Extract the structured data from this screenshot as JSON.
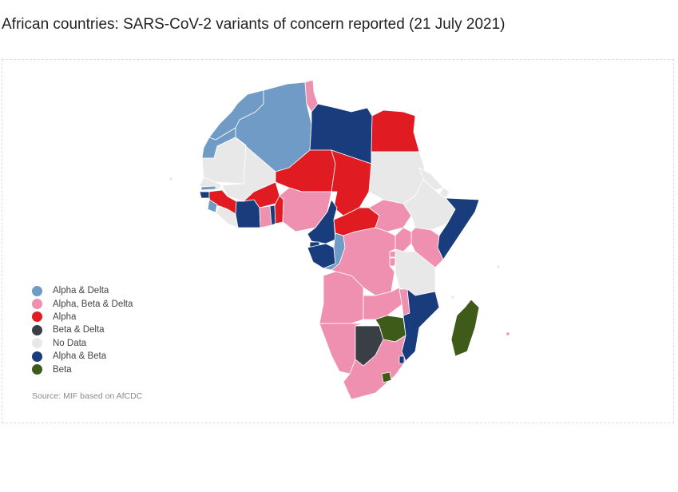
{
  "title": "African countries: SARS-CoV-2 variants of concern reported (21 July 2021)",
  "source": "Source: MIF based on AfCDC",
  "categories": [
    {
      "key": "alpha_delta",
      "label": "Alpha & Delta",
      "color": "#6f9bc6"
    },
    {
      "key": "alpha_beta_delta",
      "label": "Alpha, Beta & Delta",
      "color": "#ef90b0"
    },
    {
      "key": "alpha",
      "label": "Alpha",
      "color": "#e01b22"
    },
    {
      "key": "beta_delta",
      "label": "Beta & Delta",
      "color": "#3a3f45"
    },
    {
      "key": "no_data",
      "label": "No Data",
      "color": "#e8e8e8"
    },
    {
      "key": "alpha_beta",
      "label": "Alpha & Beta",
      "color": "#193c7c"
    },
    {
      "key": "beta",
      "label": "Beta",
      "color": "#3e5b1a"
    }
  ],
  "regions": [
    {
      "name": "Morocco",
      "category": "alpha_delta"
    },
    {
      "name": "Western Sahara",
      "category": "alpha_delta"
    },
    {
      "name": "Algeria",
      "category": "alpha_delta"
    },
    {
      "name": "Tunisia",
      "category": "alpha_beta_delta"
    },
    {
      "name": "Libya",
      "category": "alpha_beta"
    },
    {
      "name": "Egypt",
      "category": "alpha"
    },
    {
      "name": "Mauritania",
      "category": "no_data"
    },
    {
      "name": "Mali",
      "category": "no_data"
    },
    {
      "name": "Niger",
      "category": "alpha"
    },
    {
      "name": "Chad",
      "category": "alpha"
    },
    {
      "name": "Sudan",
      "category": "no_data"
    },
    {
      "name": "Senegal",
      "category": "no_data"
    },
    {
      "name": "Gambia",
      "category": "alpha_delta"
    },
    {
      "name": "Guinea-Bissau",
      "category": "alpha_beta"
    },
    {
      "name": "Guinea",
      "category": "alpha"
    },
    {
      "name": "Sierra Leone",
      "category": "alpha_delta"
    },
    {
      "name": "Liberia",
      "category": "no_data"
    },
    {
      "name": "Cote d'Ivoire",
      "category": "alpha_beta"
    },
    {
      "name": "Burkina Faso",
      "category": "alpha"
    },
    {
      "name": "Ghana",
      "category": "alpha_beta_delta"
    },
    {
      "name": "Togo",
      "category": "alpha_beta"
    },
    {
      "name": "Benin",
      "category": "alpha"
    },
    {
      "name": "Nigeria",
      "category": "alpha_beta_delta"
    },
    {
      "name": "Cameroon",
      "category": "alpha_beta"
    },
    {
      "name": "Central African Republic",
      "category": "alpha"
    },
    {
      "name": "South Sudan",
      "category": "alpha_beta_delta"
    },
    {
      "name": "Ethiopia",
      "category": "no_data"
    },
    {
      "name": "Eritrea",
      "category": "no_data"
    },
    {
      "name": "Djibouti",
      "category": "no_data"
    },
    {
      "name": "Somalia",
      "category": "alpha_beta"
    },
    {
      "name": "Kenya",
      "category": "alpha_beta_delta"
    },
    {
      "name": "Uganda",
      "category": "alpha_beta_delta"
    },
    {
      "name": "Rwanda",
      "category": "alpha_beta_delta"
    },
    {
      "name": "Burundi",
      "category": "alpha_beta_delta"
    },
    {
      "name": "Tanzania",
      "category": "no_data"
    },
    {
      "name": "Equatorial Guinea",
      "category": "alpha_beta"
    },
    {
      "name": "Gabon",
      "category": "alpha_beta"
    },
    {
      "name": "Republic of the Congo",
      "category": "alpha_delta"
    },
    {
      "name": "DR Congo",
      "category": "alpha_beta_delta"
    },
    {
      "name": "Angola",
      "category": "alpha_beta_delta"
    },
    {
      "name": "Zambia",
      "category": "alpha_beta_delta"
    },
    {
      "name": "Malawi",
      "category": "alpha_beta_delta"
    },
    {
      "name": "Mozambique",
      "category": "alpha_beta"
    },
    {
      "name": "Namibia",
      "category": "alpha_beta_delta"
    },
    {
      "name": "Botswana",
      "category": "beta_delta"
    },
    {
      "name": "Zimbabwe",
      "category": "beta"
    },
    {
      "name": "South Africa",
      "category": "alpha_beta_delta"
    },
    {
      "name": "Eswatini",
      "category": "alpha_beta"
    },
    {
      "name": "Lesotho",
      "category": "beta"
    },
    {
      "name": "Madagascar",
      "category": "beta"
    },
    {
      "name": "Mauritius",
      "category": "alpha_beta_delta"
    },
    {
      "name": "Cabo Verde",
      "category": "no_data"
    },
    {
      "name": "Comoros",
      "category": "no_data"
    },
    {
      "name": "Seychelles",
      "category": "no_data"
    }
  ]
}
